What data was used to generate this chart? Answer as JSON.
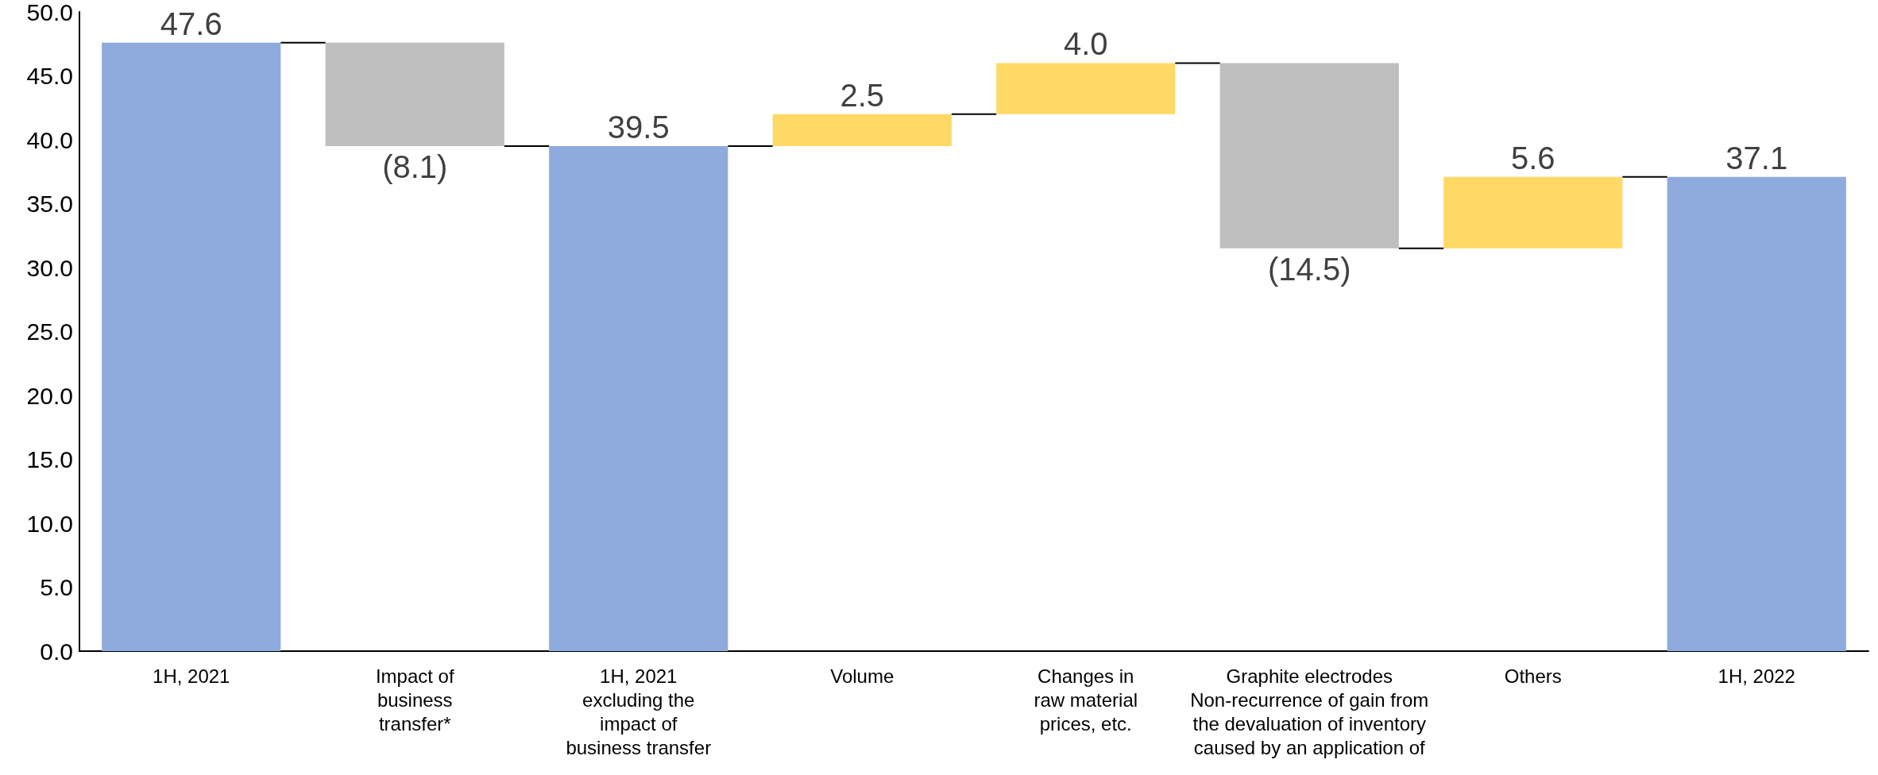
{
  "chart_data": {
    "type": "bar",
    "categories": [
      "1H, 2021",
      "Impact of\nbusiness\ntransfer*",
      "1H, 2021\nexcluding the\nimpact of\nbusiness transfer",
      "Volume",
      "Changes in\nraw material\nprices, etc.",
      "Graphite electrodes\nNon-recurrence of gain from\nthe devaluation of inventory\ncaused by an application of",
      "Others",
      "1H, 2022"
    ],
    "values": [
      47.6,
      -8.1,
      39.5,
      2.5,
      4.0,
      -14.5,
      5.6,
      37.1
    ],
    "base": [
      0,
      47.6,
      0,
      39.5,
      42.0,
      46.0,
      31.5,
      0
    ],
    "colors": [
      "#8faadc",
      "#bfbfbf",
      "#8faadc",
      "#ffd966",
      "#ffd966",
      "#bfbfbf",
      "#ffd966",
      "#8faadc"
    ],
    "value_labels": [
      "47.6",
      "(8.1)",
      "39.5",
      "2.5",
      "4.0",
      "(14.5)",
      "5.6",
      "37.1"
    ],
    "ylim": [
      0,
      50
    ],
    "yticks": [
      {
        "value": 0,
        "label": "0.0"
      },
      {
        "value": 5,
        "label": "5.0"
      },
      {
        "value": 10,
        "label": "10.0"
      },
      {
        "value": 15,
        "label": "15.0"
      },
      {
        "value": 20,
        "label": "20.0"
      },
      {
        "value": 25,
        "label": "25.0"
      },
      {
        "value": 30,
        "label": "30.0"
      },
      {
        "value": 35,
        "label": "35.0"
      },
      {
        "value": 40,
        "label": "40.0"
      },
      {
        "value": 45,
        "label": "45.0"
      },
      {
        "value": 50,
        "label": "50.0"
      }
    ],
    "grid": false
  }
}
